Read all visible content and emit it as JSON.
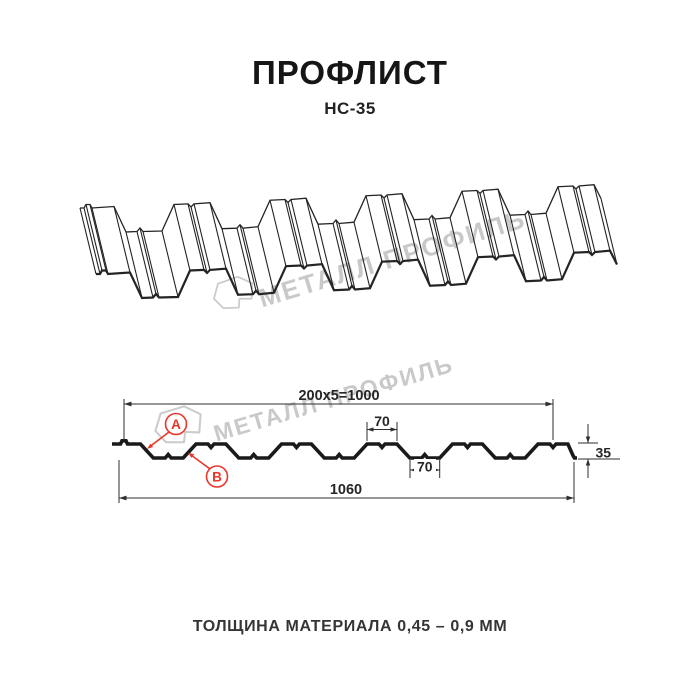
{
  "header": {
    "title": "ПРОФЛИСТ",
    "subtitle": "НС-35"
  },
  "watermark": {
    "text": "МЕТАЛЛ ПРОФИЛЬ",
    "logo": "metall-profil-logo"
  },
  "drawing": {
    "dims": {
      "module": "200x5=1000",
      "crest_width": "70",
      "trough_width": "70",
      "height": "35",
      "overall_width": "1060"
    },
    "callouts": {
      "a": "A",
      "b": "B"
    }
  },
  "footer": {
    "text": "ТОЛЩИНА МАТЕРИАЛА 0,45 – 0,9 ММ"
  },
  "colors": {
    "accent_red": "#e8362b",
    "line_black": "#1a1a1a",
    "watermark_gray": "#c9c9c9",
    "background": "#ffffff"
  }
}
